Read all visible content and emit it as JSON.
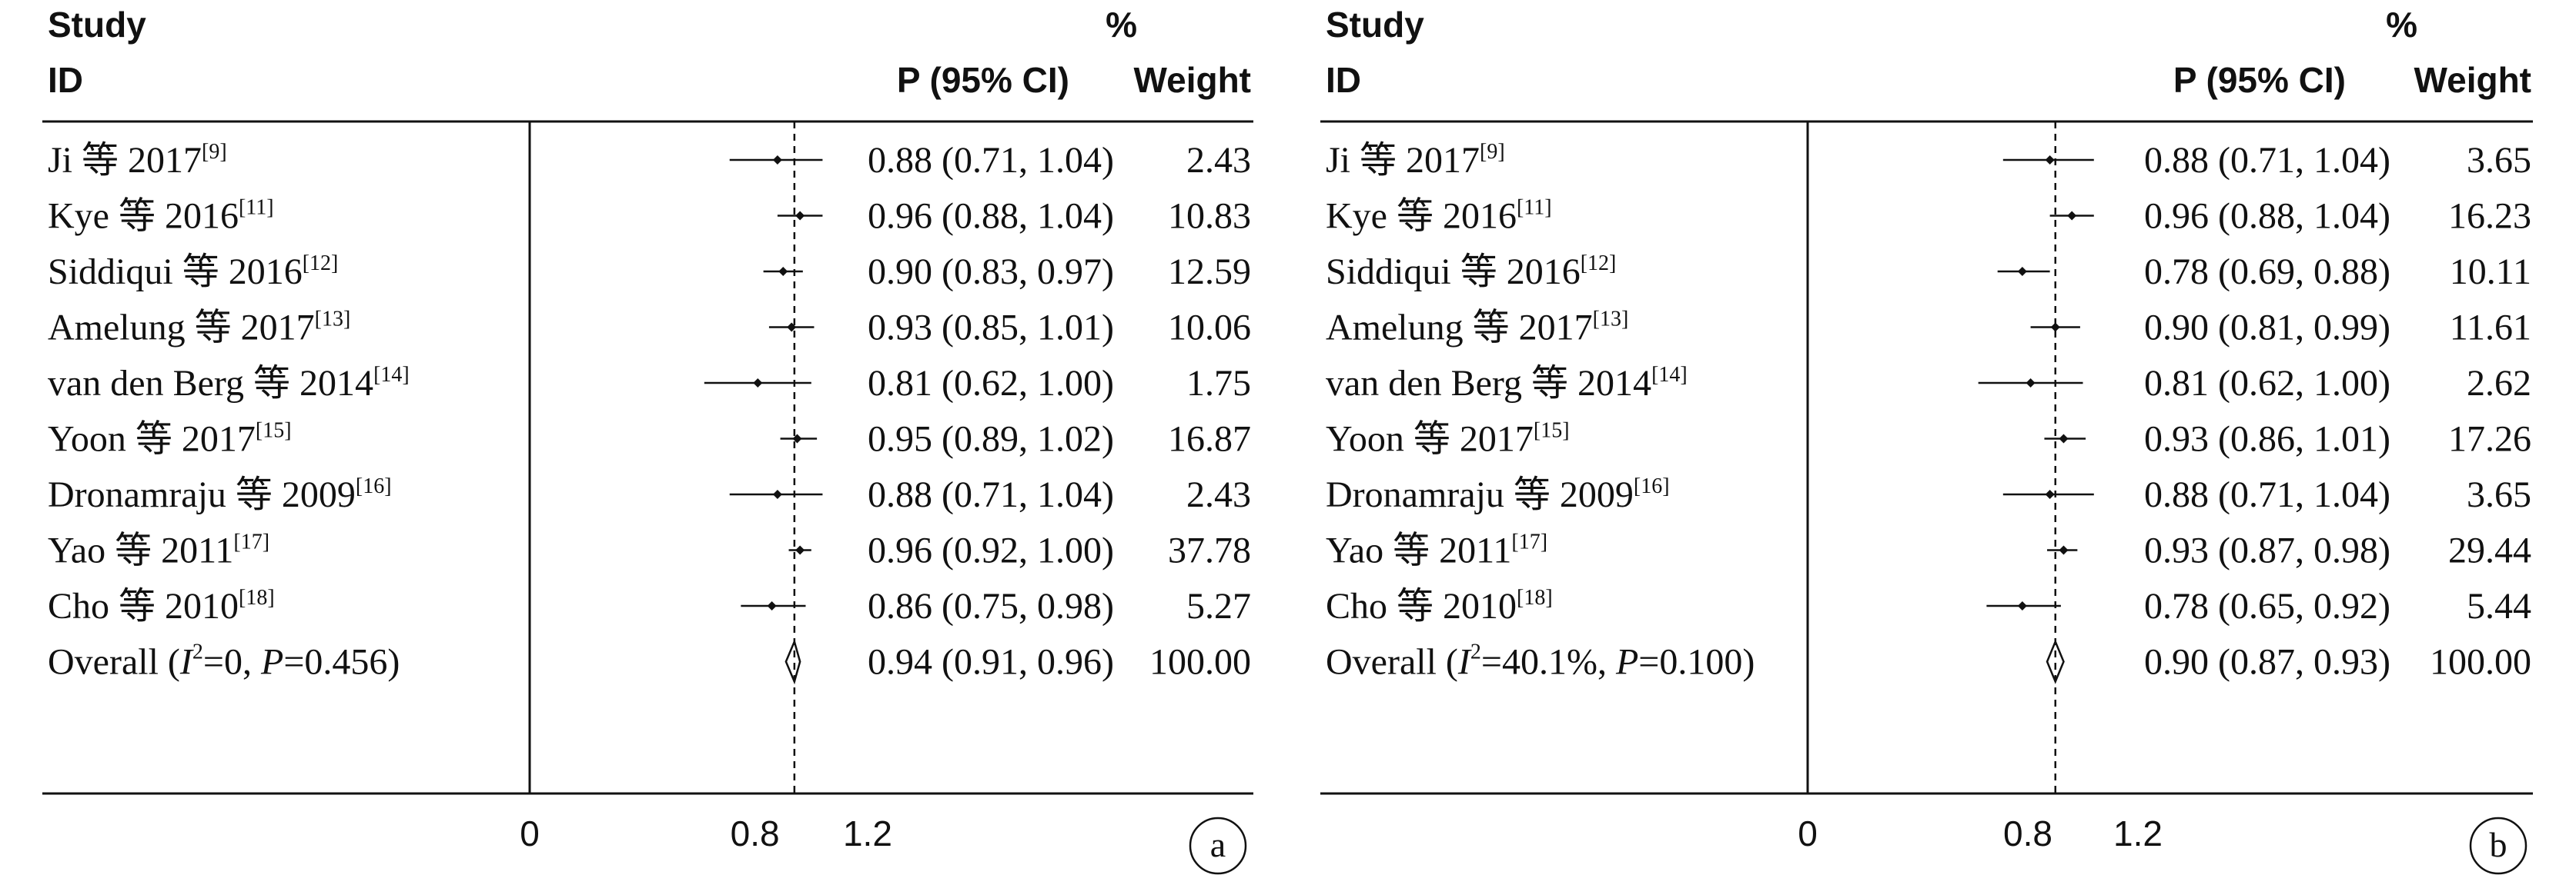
{
  "headers": {
    "study": "Study",
    "id": "ID",
    "percent": "%",
    "estimate": "P (95% CI)",
    "weight": "Weight"
  },
  "chart_data": [
    {
      "type": "forest",
      "panel_label": "a",
      "x_ticks": [
        "0",
        "0.8",
        "1.2"
      ],
      "x_tick_values": [
        0,
        0.8,
        1.2
      ],
      "xlim": [
        0,
        1.2
      ],
      "reference_line": 0.94,
      "studies": [
        {
          "name": "Ji 等 2017",
          "ref": "[9]",
          "estimate": 0.88,
          "lower": 0.71,
          "upper": 1.04,
          "ci_text": "0.88 (0.71, 1.04)",
          "weight": "2.43"
        },
        {
          "name": "Kye 等 2016",
          "ref": "[11]",
          "estimate": 0.96,
          "lower": 0.88,
          "upper": 1.04,
          "ci_text": "0.96 (0.88, 1.04)",
          "weight": "10.83"
        },
        {
          "name": "Siddiqui 等 2016",
          "ref": "[12]",
          "estimate": 0.9,
          "lower": 0.83,
          "upper": 0.97,
          "ci_text": "0.90 (0.83, 0.97)",
          "weight": "12.59"
        },
        {
          "name": "Amelung 等 2017",
          "ref": "[13]",
          "estimate": 0.93,
          "lower": 0.85,
          "upper": 1.01,
          "ci_text": "0.93 (0.85, 1.01)",
          "weight": "10.06"
        },
        {
          "name": "van den Berg 等 2014",
          "ref": "[14]",
          "estimate": 0.81,
          "lower": 0.62,
          "upper": 1.0,
          "ci_text": "0.81 (0.62, 1.00)",
          "weight": "1.75"
        },
        {
          "name": "Yoon 等 2017",
          "ref": "[15]",
          "estimate": 0.95,
          "lower": 0.89,
          "upper": 1.02,
          "ci_text": "0.95 (0.89, 1.02)",
          "weight": "16.87"
        },
        {
          "name": "Dronamraju 等 2009",
          "ref": "[16]",
          "estimate": 0.88,
          "lower": 0.71,
          "upper": 1.04,
          "ci_text": "0.88 (0.71, 1.04)",
          "weight": "2.43"
        },
        {
          "name": "Yao 等 2011",
          "ref": "[17]",
          "estimate": 0.96,
          "lower": 0.92,
          "upper": 1.0,
          "ci_text": "0.96 (0.92, 1.00)",
          "weight": "37.78"
        },
        {
          "name": "Cho 等 2010",
          "ref": "[18]",
          "estimate": 0.86,
          "lower": 0.75,
          "upper": 0.98,
          "ci_text": "0.86 (0.75, 0.98)",
          "weight": "5.27"
        }
      ],
      "overall": {
        "prefix": "Overall  (",
        "i2_symbol": "I",
        "i2_sup": "2",
        "i2_value": "=0, ",
        "p_symbol": "P",
        "p_value": "=0.456)",
        "estimate": 0.94,
        "lower": 0.91,
        "upper": 0.96,
        "ci_text": "0.94 (0.91, 0.96)",
        "weight": "100.00"
      }
    },
    {
      "type": "forest",
      "panel_label": "b",
      "x_ticks": [
        "0",
        "0.8",
        "1.2"
      ],
      "x_tick_values": [
        0,
        0.8,
        1.2
      ],
      "xlim": [
        0,
        1.2
      ],
      "reference_line": 0.9,
      "studies": [
        {
          "name": "Ji 等 2017",
          "ref": "[9]",
          "estimate": 0.88,
          "lower": 0.71,
          "upper": 1.04,
          "ci_text": "0.88 (0.71, 1.04)",
          "weight": "3.65"
        },
        {
          "name": "Kye 等 2016",
          "ref": "[11]",
          "estimate": 0.96,
          "lower": 0.88,
          "upper": 1.04,
          "ci_text": "0.96 (0.88, 1.04)",
          "weight": "16.23"
        },
        {
          "name": "Siddiqui 等 2016",
          "ref": "[12]",
          "estimate": 0.78,
          "lower": 0.69,
          "upper": 0.88,
          "ci_text": "0.78 (0.69, 0.88)",
          "weight": "10.11"
        },
        {
          "name": "Amelung 等 2017",
          "ref": "[13]",
          "estimate": 0.9,
          "lower": 0.81,
          "upper": 0.99,
          "ci_text": "0.90 (0.81, 0.99)",
          "weight": "11.61"
        },
        {
          "name": "van den Berg 等 2014",
          "ref": "[14]",
          "estimate": 0.81,
          "lower": 0.62,
          "upper": 1.0,
          "ci_text": "0.81 (0.62, 1.00)",
          "weight": "2.62"
        },
        {
          "name": "Yoon 等 2017",
          "ref": "[15]",
          "estimate": 0.93,
          "lower": 0.86,
          "upper": 1.01,
          "ci_text": "0.93 (0.86, 1.01)",
          "weight": "17.26"
        },
        {
          "name": "Dronamraju 等 2009",
          "ref": "[16]",
          "estimate": 0.88,
          "lower": 0.71,
          "upper": 1.04,
          "ci_text": "0.88 (0.71, 1.04)",
          "weight": "3.65"
        },
        {
          "name": "Yao 等 2011",
          "ref": "[17]",
          "estimate": 0.93,
          "lower": 0.87,
          "upper": 0.98,
          "ci_text": "0.93 (0.87, 0.98)",
          "weight": "29.44"
        },
        {
          "name": "Cho 等 2010",
          "ref": "[18]",
          "estimate": 0.78,
          "lower": 0.65,
          "upper": 0.92,
          "ci_text": "0.78 (0.65, 0.92)",
          "weight": "5.44"
        }
      ],
      "overall": {
        "prefix": "Overall  (",
        "i2_symbol": "I",
        "i2_sup": "2",
        "i2_value": "=40.1%, ",
        "p_symbol": "P",
        "p_value": "=0.100)",
        "estimate": 0.9,
        "lower": 0.87,
        "upper": 0.93,
        "ci_text": "0.90 (0.87, 0.93)",
        "weight": "100.00"
      }
    }
  ]
}
